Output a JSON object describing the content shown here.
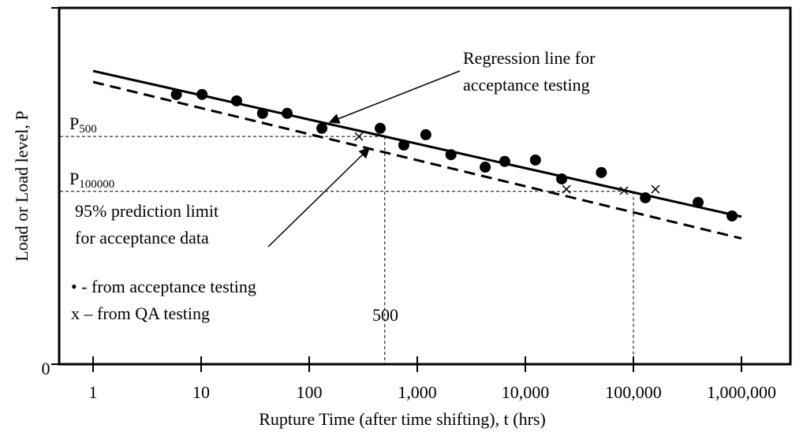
{
  "chart_data": {
    "type": "scatter",
    "xlabel": "Rupture Time (after time shifting), t (hrs)",
    "ylabel": "Load or Load level, P",
    "xscale": "log",
    "xlim": [
      1,
      1000000
    ],
    "xticks": [
      1,
      10,
      100,
      {
        "value": 1000,
        "label": "1,000"
      },
      {
        "value": 10000,
        "label": "10,000"
      },
      {
        "value": 100000,
        "label": "100,000"
      },
      {
        "value": 1000000,
        "label": "1,000,000"
      }
    ],
    "ylim": [
      0,
      100
    ],
    "yticks": [
      0
    ],
    "series": [
      {
        "name": "• - from acceptance testing",
        "marker": "dot",
        "color": "#000000",
        "x": [
          5.9,
          10.2,
          21.3,
          37,
          62.5,
          131,
          454,
          751,
          1200,
          2050,
          4250,
          6450,
          12400,
          21700,
          50500,
          129000,
          397000,
          818000
        ],
        "values": [
          75.7,
          75.7,
          73.9,
          70.4,
          70.4,
          66.2,
          66.2,
          61.5,
          64.4,
          58.8,
          55.3,
          56.9,
          57.3,
          52.0,
          53.8,
          46.7,
          45.4,
          41.6
        ]
      },
      {
        "name": "x – from QA testing",
        "marker": "x",
        "color": "#000000",
        "x": [
          288,
          24000,
          81800,
          160000
        ],
        "values": [
          63.9,
          49.1,
          48.7,
          49.1
        ]
      }
    ],
    "lines": [
      {
        "style": "solid",
        "x": [
          1,
          1000000
        ],
        "values": [
          82.3,
          41.4
        ],
        "annotation": [
          "Regression line for",
          "acceptance testing"
        ]
      },
      {
        "style": "dashed",
        "x": [
          1,
          1000000
        ],
        "values": [
          79.2,
          35.3
        ],
        "annotation": [
          "95% prediction limit",
          "for acceptance data"
        ]
      }
    ],
    "reference_lines": [
      {
        "t": 500,
        "p": 63.9,
        "label": "P",
        "subscript": "500"
      },
      {
        "t": 100000,
        "p": 48.5,
        "label": "P",
        "subscript": "100000"
      }
    ]
  }
}
